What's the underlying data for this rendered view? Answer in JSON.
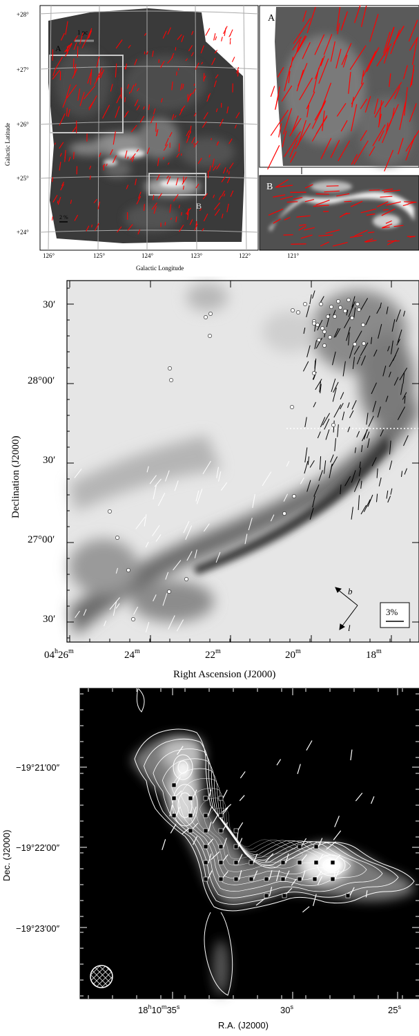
{
  "panel1": {
    "scale_bar": "1 pc",
    "pct_bar": "2 %",
    "box_a": "A",
    "box_b": "B",
    "inset_a": "A",
    "inset_b": "B",
    "ylabel": "Galactic Latitude",
    "xlabel": "Galactic Longitude",
    "yticks": [
      "+28°",
      "+27°",
      "+26°",
      "+25°",
      "+24°"
    ],
    "xticks": [
      "126°",
      "125°",
      "124°",
      "123°",
      "122°",
      "121°"
    ],
    "vector_color": "#ff0000"
  },
  "panel2": {
    "ylabel": "Declination (J2000)",
    "xlabel": "Right Ascension (J2000)",
    "yticks": [
      "30′",
      "28°00′",
      "30′",
      "27°00′",
      "30′"
    ],
    "xticks_h": [
      "04",
      "",
      "",
      "",
      ""
    ],
    "xticks": [
      {
        "main": "04",
        "sup": "h",
        "main2": "26",
        "sup2": "m"
      },
      {
        "main": "24",
        "sup": "m"
      },
      {
        "main": "22",
        "sup": "m"
      },
      {
        "main": "20",
        "sup": "m"
      },
      {
        "main": "18",
        "sup": "m"
      }
    ],
    "compass_b": "b",
    "compass_l": "l",
    "pct_bar": "3%"
  },
  "panel3": {
    "ylabel": "Dec. (J2000)",
    "xlabel": "R.A. (J2000)",
    "yticks": [
      "−19°21′00″",
      "−19°22′00″",
      "−19°23′00″"
    ],
    "xticks": [
      {
        "main": "18",
        "sup": "h",
        "main2": "10",
        "sup2": "m",
        "main3": "35",
        "sup3": "s"
      },
      {
        "main": "30",
        "sup": "s"
      },
      {
        "main": "25",
        "sup": "s"
      }
    ]
  }
}
